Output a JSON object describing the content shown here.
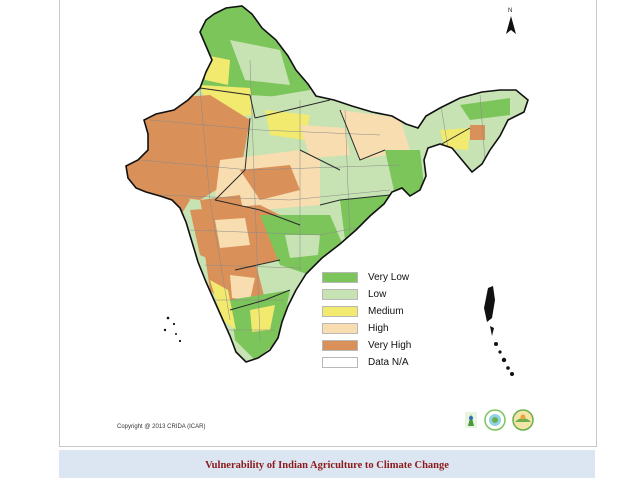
{
  "legend": {
    "items": [
      {
        "label": "Very Low",
        "color": "#7cc55a"
      },
      {
        "label": "Low",
        "color": "#c7e3b3"
      },
      {
        "label": "Medium",
        "color": "#f1ea6e"
      },
      {
        "label": "High",
        "color": "#f7ddb0"
      },
      {
        "label": "Very High",
        "color": "#d99059"
      },
      {
        "label": "Data N/A",
        "color": "#ffffff"
      }
    ]
  },
  "north_label": "N",
  "copyright": "Copyright @ 2013 CRIDA (ICAR)",
  "caption": "Vulnerability of Indian Agriculture to Climate Change",
  "map_colors": {
    "very_low": "#7cc55a",
    "low": "#c7e3b3",
    "medium": "#f1ea6e",
    "high": "#f7ddb0",
    "very_high": "#d99059",
    "border": "#2a2a2a",
    "district_lines": "#8a8a8a"
  },
  "icons": [
    "north-arrow-icon",
    "icar-logo-icon",
    "crida-logo-icon",
    "nicra-logo-icon"
  ]
}
